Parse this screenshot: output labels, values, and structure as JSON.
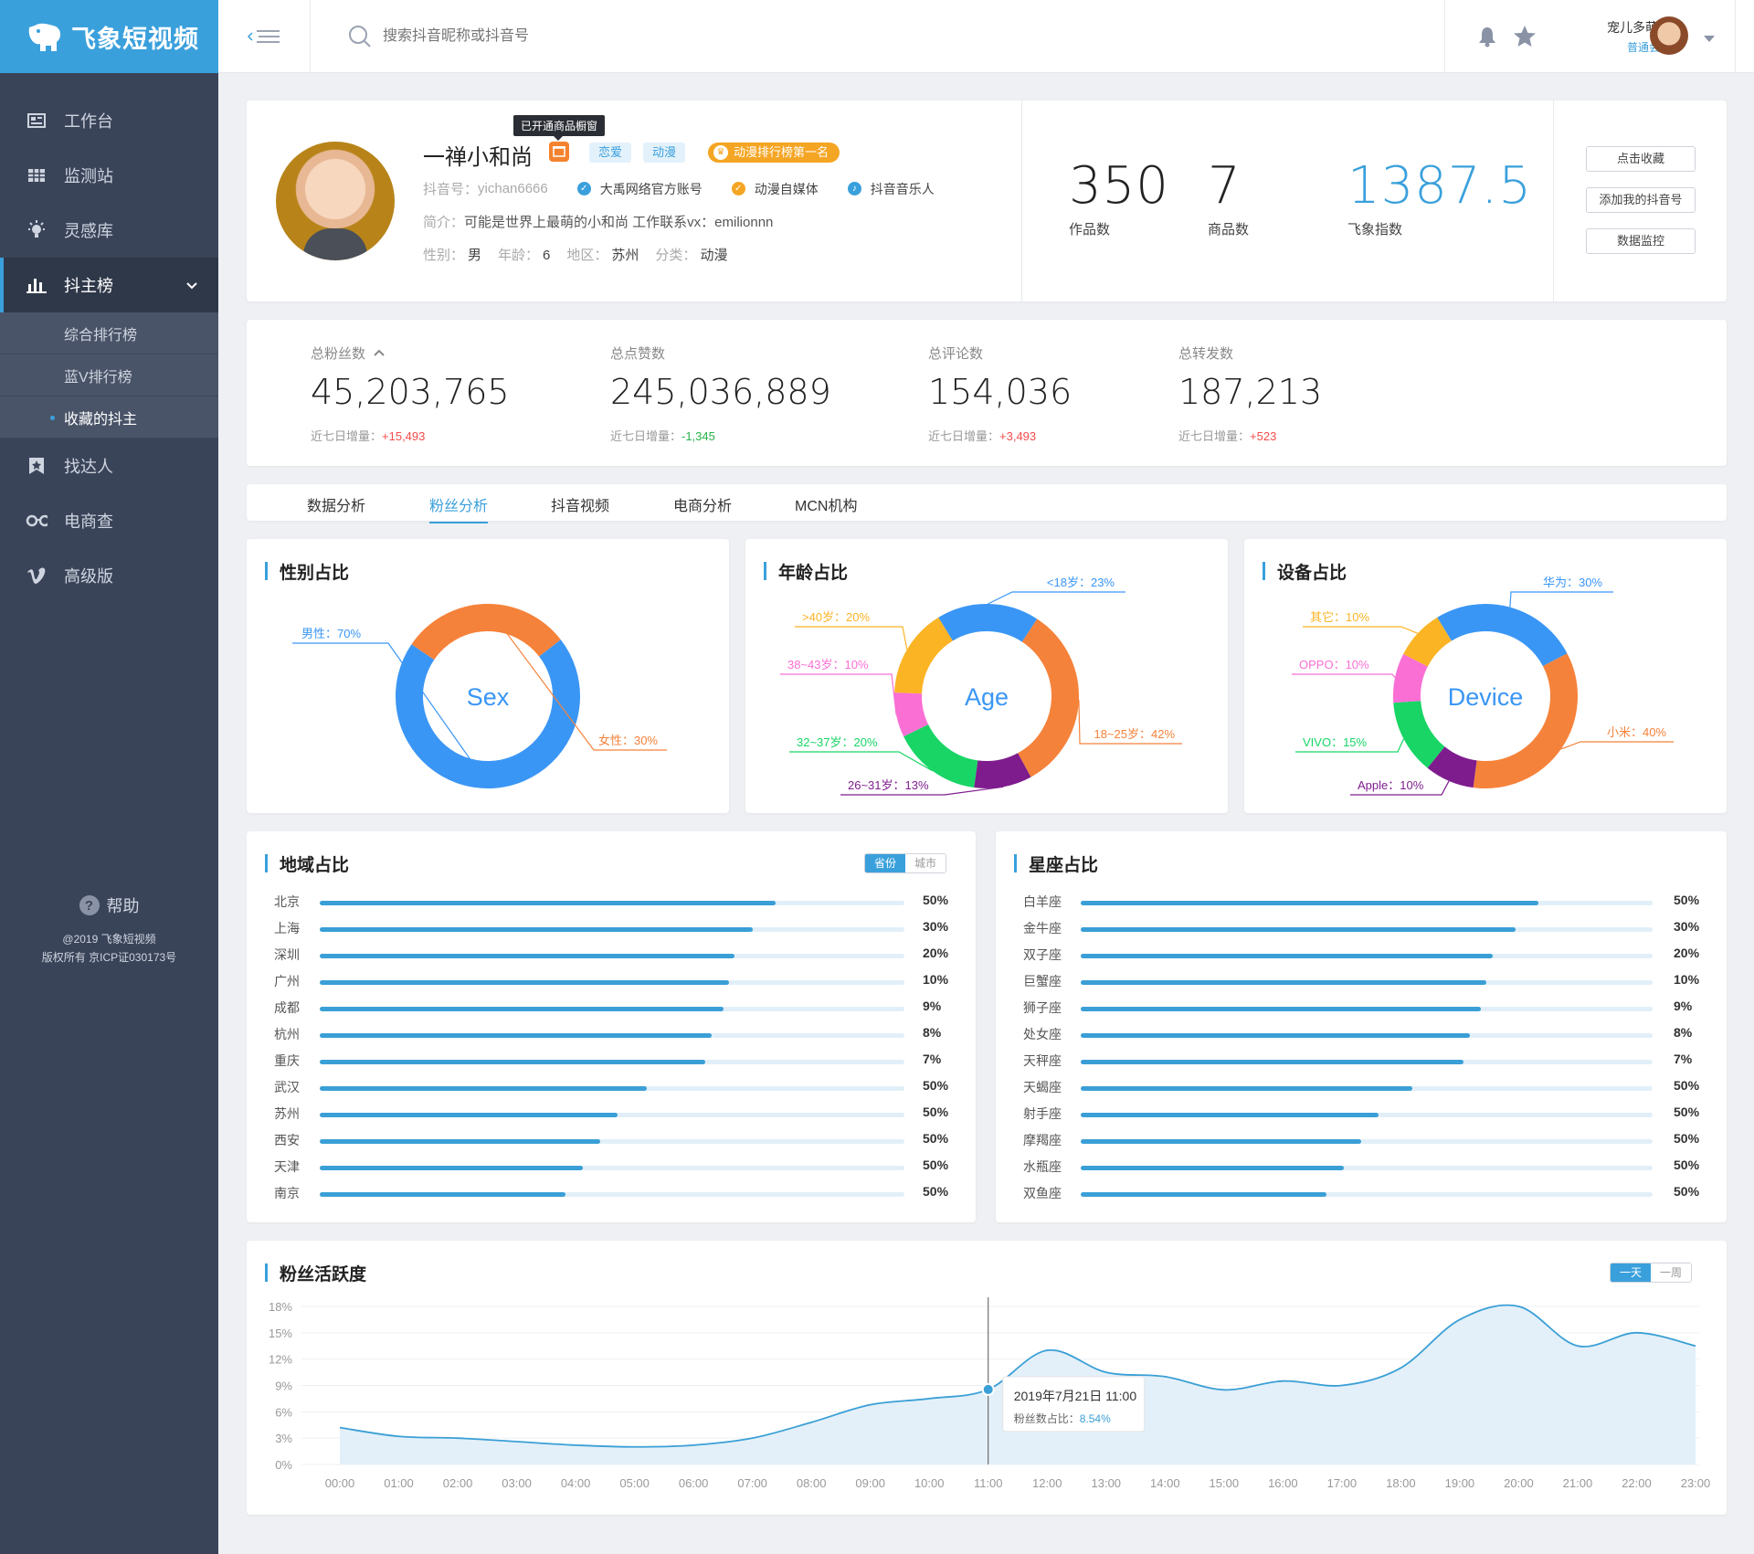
{
  "app": {
    "logo_text": "飞象短视频"
  },
  "sidebar": {
    "items": [
      {
        "label": "工作台",
        "icon": "dashboard-icon"
      },
      {
        "label": "监测站",
        "icon": "monitor-icon"
      },
      {
        "label": "灵感库",
        "icon": "lightbulb-icon"
      },
      {
        "label": "抖主榜",
        "icon": "chart-icon"
      },
      {
        "label": "找达人",
        "icon": "bookmark-icon"
      },
      {
        "label": "电商查",
        "icon": "glasses-icon"
      },
      {
        "label": "高级版",
        "icon": "vimeo-icon"
      }
    ],
    "subitems": [
      {
        "label": "综合排行榜"
      },
      {
        "label": "蓝V排行榜"
      },
      {
        "label": "收藏的抖主"
      }
    ],
    "help": "帮助",
    "copyright1": "@2019 飞象短视频",
    "copyright2": "版权所有 京ICP证030173号"
  },
  "header": {
    "search_placeholder": "搜索抖音昵称或抖音号",
    "user_name": "宠儿多萌宠",
    "user_level": "普通会员"
  },
  "profile": {
    "name": "一禅小和尚",
    "tooltip": "已开通商品橱窗",
    "tags": [
      "恋爱",
      "动漫"
    ],
    "rank_badge": "动漫排行榜第一名",
    "douyin_label": "抖音号：",
    "douyin_id": "yichan6666",
    "verifications": [
      {
        "label": "大禹网络官方账号",
        "color": "#3aa0dc"
      },
      {
        "label": "动漫自媒体",
        "color": "#f5a524"
      },
      {
        "label": "抖音音乐人",
        "color": "#3aa0dc"
      }
    ],
    "intro_label": "简介：",
    "intro": "可能是世界上最萌的小和尚 工作联系vx：emilionnn",
    "gender_label": "性别：",
    "gender": "男",
    "age_label": "年龄：",
    "age": "6",
    "region_label": "地区：",
    "region": "苏州",
    "category_label": "分类：",
    "category": "动漫",
    "works": "350",
    "works_label": "作品数",
    "goods": "7",
    "goods_label": "商品数",
    "index": "1387.5",
    "index_label": "飞象指数",
    "actions": [
      "点击收藏",
      "添加我的抖音号",
      "数据监控"
    ]
  },
  "stats": [
    {
      "title": "总粉丝数",
      "value": "45,203,765",
      "growth_label": "近七日增量：",
      "growth": "+15,493",
      "dir": "up"
    },
    {
      "title": "总点赞数",
      "value": "245,036,889",
      "growth_label": "近七日增量：",
      "growth": "-1,345",
      "dir": "dn"
    },
    {
      "title": "总评论数",
      "value": "154,036",
      "growth_label": "近七日增量：",
      "growth": "+3,493",
      "dir": "up"
    },
    {
      "title": "总转发数",
      "value": "187,213",
      "growth_label": "近七日增量：",
      "growth": "+523",
      "dir": "up"
    }
  ],
  "tabs": [
    "数据分析",
    "粉丝分析",
    "抖音视频",
    "电商分析",
    "MCN机构"
  ],
  "colors": {
    "accent": "#3aa0dc",
    "blue": "#3a96f5",
    "orange": "#f5823a",
    "yellow": "#fbb424",
    "pink": "#f96fd4",
    "green": "#18d566",
    "purple": "#7e1c8e"
  },
  "gender_chart": {
    "title": "性别占比",
    "center": "Sex",
    "slices": [
      {
        "label": "男性：70%",
        "value": 70,
        "color": "#3a96f5"
      },
      {
        "label": "女性：30%",
        "value": 30,
        "color": "#f5823a"
      }
    ]
  },
  "age_chart": {
    "title": "年龄占比",
    "center": "Age",
    "slices": [
      {
        "label": "<18岁：23%",
        "value": 23,
        "color": "#3a96f5"
      },
      {
        "label": "18~25岁：42%",
        "value": 42,
        "color": "#f5823a"
      },
      {
        "label": "26~31岁：13%",
        "value": 13,
        "color": "#7e1c8e"
      },
      {
        "label": "32~37岁：20%",
        "value": 20,
        "color": "#18d566"
      },
      {
        "label": "38~43岁：10%",
        "value": 10,
        "color": "#f96fd4"
      },
      {
        "label": ">40岁：20%",
        "value": 20,
        "color": "#fbb424"
      }
    ]
  },
  "device_chart": {
    "title": "设备占比",
    "center": "Device",
    "slices": [
      {
        "label": "华为：30%",
        "value": 30,
        "color": "#3a96f5"
      },
      {
        "label": "小米：40%",
        "value": 40,
        "color": "#f5823a"
      },
      {
        "label": "Apple：10%",
        "value": 10,
        "color": "#7e1c8e"
      },
      {
        "label": "VIVO：15%",
        "value": 15,
        "color": "#18d566"
      },
      {
        "label": "OPPO：10%",
        "value": 10,
        "color": "#f96fd4"
      },
      {
        "label": "其它：10%",
        "value": 10,
        "color": "#fbb424"
      }
    ]
  },
  "region": {
    "title": "地域占比",
    "seg": [
      "省份",
      "城市"
    ],
    "items": [
      {
        "label": "北京",
        "value": "50%",
        "fill": 0.78
      },
      {
        "label": "上海",
        "value": "30%",
        "fill": 0.74
      },
      {
        "label": "深圳",
        "value": "20%",
        "fill": 0.71
      },
      {
        "label": "广州",
        "value": "10%",
        "fill": 0.7
      },
      {
        "label": "成都",
        "value": "9%",
        "fill": 0.69
      },
      {
        "label": "杭州",
        "value": "8%",
        "fill": 0.67
      },
      {
        "label": "重庆",
        "value": "7%",
        "fill": 0.66
      },
      {
        "label": "武汉",
        "value": "50%",
        "fill": 0.56
      },
      {
        "label": "苏州",
        "value": "50%",
        "fill": 0.51
      },
      {
        "label": "西安",
        "value": "50%",
        "fill": 0.48
      },
      {
        "label": "天津",
        "value": "50%",
        "fill": 0.45
      },
      {
        "label": "南京",
        "value": "50%",
        "fill": 0.42
      }
    ]
  },
  "zodiac": {
    "title": "星座占比",
    "items": [
      {
        "label": "白羊座",
        "value": "50%",
        "fill": 0.8
      },
      {
        "label": "金牛座",
        "value": "30%",
        "fill": 0.76
      },
      {
        "label": "双子座",
        "value": "20%",
        "fill": 0.72
      },
      {
        "label": "巨蟹座",
        "value": "10%",
        "fill": 0.71
      },
      {
        "label": "狮子座",
        "value": "9%",
        "fill": 0.7
      },
      {
        "label": "处女座",
        "value": "8%",
        "fill": 0.68
      },
      {
        "label": "天秤座",
        "value": "7%",
        "fill": 0.67
      },
      {
        "label": "天蝎座",
        "value": "50%",
        "fill": 0.58
      },
      {
        "label": "射手座",
        "value": "50%",
        "fill": 0.52
      },
      {
        "label": "摩羯座",
        "value": "50%",
        "fill": 0.49
      },
      {
        "label": "水瓶座",
        "value": "50%",
        "fill": 0.46
      },
      {
        "label": "双鱼座",
        "value": "50%",
        "fill": 0.43
      }
    ]
  },
  "activity": {
    "title": "粉丝活跃度",
    "seg": [
      "一天",
      "一周"
    ],
    "tooltip_title": "2019年7月21日 11:00",
    "tooltip_label": "粉丝数占比：",
    "tooltip_value": "8.54%"
  },
  "chart_data": {
    "type": "area",
    "x": [
      "00:00",
      "01:00",
      "02:00",
      "03:00",
      "04:00",
      "05:00",
      "06:00",
      "07:00",
      "08:00",
      "09:00",
      "10:00",
      "11:00",
      "12:00",
      "13:00",
      "14:00",
      "15:00",
      "16:00",
      "17:00",
      "18:00",
      "19:00",
      "20:00",
      "21:00",
      "22:00",
      "23:00"
    ],
    "y": [
      4.2,
      3.2,
      3.0,
      2.6,
      2.2,
      2.0,
      2.2,
      3.0,
      4.8,
      6.8,
      7.5,
      8.54,
      13.0,
      10.5,
      10.0,
      8.5,
      9.5,
      9.0,
      11.0,
      16.5,
      18.0,
      13.5,
      15.0,
      13.5
    ],
    "yticks": [
      "0%",
      "3%",
      "6%",
      "9%",
      "12%",
      "15%",
      "18%"
    ],
    "ylim": [
      0,
      18
    ],
    "grid": true,
    "highlight_index": 11
  }
}
